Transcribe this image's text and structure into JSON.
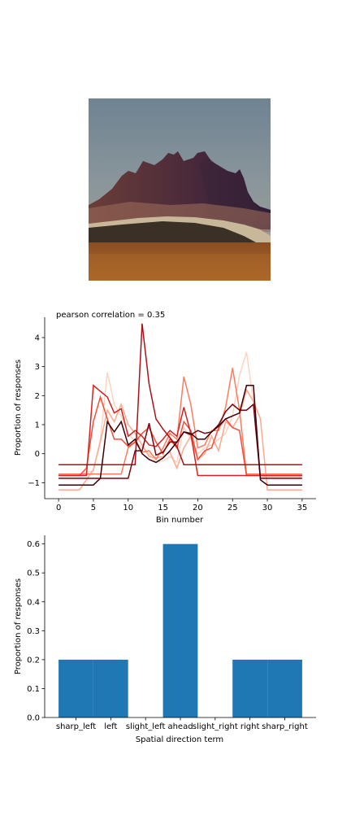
{
  "photo": {
    "subject": "desert mountain peak photo"
  },
  "chart_data": [
    {
      "type": "line",
      "title": "pearson correlation = 0.35",
      "xlabel": "Bin number",
      "ylabel": "Proportion of responses",
      "xlim": [
        -2,
        37
      ],
      "ylim": [
        -1.55,
        4.7
      ],
      "xticks": [
        0,
        5,
        10,
        15,
        20,
        25,
        30,
        35
      ],
      "yticks": [
        -1,
        0,
        1,
        2,
        3,
        4
      ],
      "grid": false,
      "colormap": "Reds",
      "series": [
        {
          "color": "#fcd4c2",
          "x": [
            0,
            3,
            5,
            6,
            7,
            8,
            9,
            10,
            11,
            12,
            13,
            14,
            15,
            16,
            17,
            18,
            19,
            20,
            21,
            22,
            23,
            24,
            25,
            26,
            27,
            28,
            29,
            30,
            35
          ],
          "y": [
            -0.7,
            -0.7,
            -0.6,
            0.5,
            2.8,
            1.7,
            1.3,
            0.7,
            0.4,
            0.2,
            0.0,
            -0.3,
            -0.25,
            -0.1,
            -0.3,
            0.9,
            0.5,
            0.0,
            0.2,
            0.3,
            0.5,
            0.7,
            1.3,
            2.7,
            3.5,
            1.8,
            -0.8,
            -0.8,
            -0.8
          ]
        },
        {
          "color": "#fca98c",
          "x": [
            0,
            3,
            5,
            6,
            7,
            8,
            9,
            10,
            11,
            12,
            13,
            14,
            15,
            16,
            17,
            18,
            19,
            20,
            21,
            22,
            23,
            24,
            25,
            26,
            27,
            28,
            29,
            30,
            35
          ],
          "y": [
            -1.25,
            -1.25,
            -0.55,
            0.4,
            1.5,
            1.1,
            1.7,
            1.0,
            0.7,
            0.3,
            -0.1,
            -0.15,
            -0.1,
            0.05,
            -0.5,
            0.2,
            0.6,
            -0.2,
            0.0,
            0.6,
            0.1,
            1.1,
            0.9,
            1.3,
            2.2,
            1.8,
            1.2,
            -1.25,
            -1.25
          ]
        },
        {
          "color": "#fb7d5d",
          "x": [
            0,
            3,
            4,
            5,
            6,
            7,
            8,
            9,
            10,
            11,
            12,
            13,
            14,
            15,
            16,
            17,
            18,
            19,
            20,
            21,
            22,
            23,
            24,
            25,
            26,
            27,
            28,
            35
          ],
          "y": [
            -0.7,
            -0.7,
            -0.7,
            -0.7,
            -0.7,
            -0.7,
            -0.7,
            -0.7,
            0.2,
            0.4,
            0.05,
            0.1,
            -0.2,
            0.2,
            0.7,
            0.5,
            2.65,
            1.7,
            0.2,
            0.3,
            0.8,
            0.8,
            1.6,
            2.95,
            1.5,
            -0.7,
            -0.7,
            -0.7
          ]
        },
        {
          "color": "#f44d38",
          "x": [
            0,
            3,
            4,
            5,
            6,
            7,
            8,
            9,
            10,
            11,
            12,
            13,
            14,
            15,
            16,
            17,
            18,
            19,
            20,
            21,
            22,
            23,
            24,
            25,
            26,
            27,
            28,
            35
          ],
          "y": [
            -0.75,
            -0.75,
            -0.5,
            1.1,
            1.95,
            1.2,
            0.5,
            0.5,
            0.25,
            0.4,
            0.7,
            0.9,
            0.4,
            0.0,
            0.5,
            0.2,
            1.1,
            0.8,
            -0.2,
            0.1,
            0.2,
            0.9,
            1.2,
            0.9,
            0.8,
            -0.75,
            -0.75,
            -0.75
          ]
        },
        {
          "color": "#d52221",
          "x": [
            0,
            4,
            5,
            6,
            7,
            8,
            9,
            10,
            11,
            12,
            13,
            14,
            15,
            16,
            17,
            18,
            19,
            20,
            35
          ],
          "y": [
            -0.75,
            -0.75,
            2.35,
            2.15,
            1.95,
            1.4,
            1.55,
            0.6,
            0.8,
            0.6,
            0.3,
            0.25,
            0.5,
            0.8,
            0.6,
            1.6,
            0.7,
            -0.75,
            -0.75
          ]
        },
        {
          "color": "#ad1116",
          "x": [
            0,
            11,
            12,
            13,
            14,
            15,
            16,
            17,
            18,
            35
          ],
          "y": [
            -0.38,
            -0.38,
            4.48,
            2.4,
            1.2,
            0.85,
            0.55,
            0.25,
            -0.38,
            -0.38
          ]
        },
        {
          "color": "#780510",
          "x": [
            0,
            5,
            6,
            7,
            8,
            9,
            10,
            11,
            12,
            13,
            14,
            15,
            16,
            17,
            18,
            19,
            20,
            21,
            22,
            23,
            24,
            25,
            26,
            27,
            28,
            29,
            30,
            35
          ],
          "y": [
            -0.85,
            -0.85,
            -0.85,
            -0.85,
            -0.85,
            -0.85,
            -0.85,
            0.1,
            0.1,
            1.05,
            -0.05,
            0.05,
            0.4,
            0.4,
            0.75,
            0.65,
            0.8,
            0.7,
            0.75,
            1.0,
            1.45,
            1.7,
            1.5,
            1.5,
            1.7,
            -0.85,
            -0.85,
            -0.85
          ]
        },
        {
          "color": "#3b0008",
          "x": [
            0,
            5,
            6,
            7,
            8,
            9,
            10,
            11,
            12,
            13,
            14,
            15,
            16,
            17,
            18,
            19,
            20,
            21,
            22,
            23,
            24,
            25,
            26,
            27,
            28,
            29,
            30,
            35
          ],
          "y": [
            -1.08,
            -1.08,
            -0.85,
            1.1,
            0.75,
            1.1,
            0.3,
            0.5,
            0.0,
            -0.2,
            -0.3,
            -0.15,
            0.1,
            0.4,
            0.75,
            0.7,
            0.5,
            0.5,
            0.75,
            0.95,
            1.2,
            1.3,
            1.4,
            2.35,
            2.35,
            -0.9,
            -1.08,
            -1.08
          ]
        }
      ]
    },
    {
      "type": "bar",
      "title": "",
      "xlabel": "Spatial direction term",
      "ylabel": "Proportion of responses",
      "categories": [
        "sharp_left",
        "left",
        "slight_left",
        "ahead",
        "slight_right",
        "right",
        "sharp_right"
      ],
      "values": [
        0.2,
        0.2,
        0.0,
        0.6,
        0.0,
        0.2,
        0.2
      ],
      "ylim": [
        0,
        0.63
      ],
      "yticks": [
        0.0,
        0.1,
        0.2,
        0.3,
        0.4,
        0.5,
        0.6
      ],
      "ytick_labels": [
        "0.0",
        "0.1",
        "0.2",
        "0.3",
        "0.4",
        "0.5",
        "0.6"
      ],
      "bar_color": "#1f77b4",
      "grid": false
    }
  ]
}
